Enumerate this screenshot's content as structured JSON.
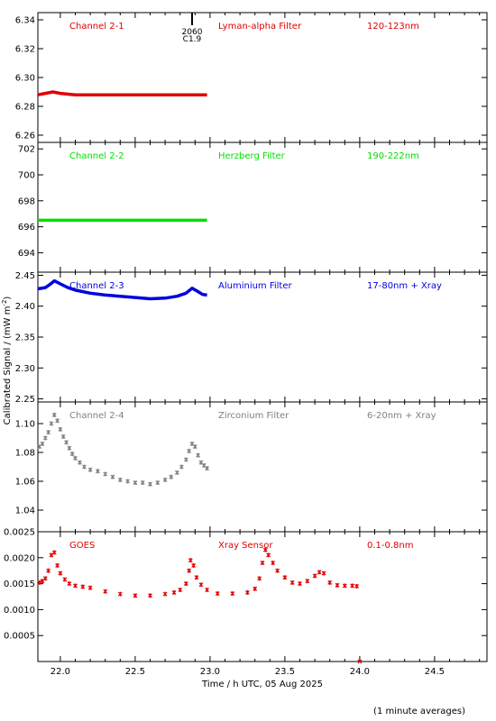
{
  "figure": {
    "ylabel": "Calibrated Signal / (mW m",
    "ylabel_sup": "-2",
    "ylabel_end": ")",
    "xlabel": "Time / h UTC, 05 Aug 2025",
    "footnote": "(1 minute averages)",
    "marker": {
      "top": "2060",
      "bottom": "C1.9",
      "x": 22.88
    }
  },
  "chart_data": [
    {
      "type": "line",
      "label_left": "Channel 2-1",
      "label_mid": "Lyman-alpha Filter",
      "label_right": "120-123nm",
      "color": "#e00000",
      "xlim": [
        21.85,
        24.85
      ],
      "ylim": [
        6.255,
        6.345
      ],
      "yticks": [
        6.26,
        6.28,
        6.3,
        6.32,
        6.34
      ],
      "ytick_labels": [
        "6.26",
        "6.28",
        "6.30",
        "6.32",
        "6.34"
      ],
      "points": [
        [
          21.85,
          6.288
        ],
        [
          21.9,
          6.289
        ],
        [
          21.95,
          6.29
        ],
        [
          22.0,
          6.289
        ],
        [
          22.1,
          6.288
        ],
        [
          22.3,
          6.288
        ],
        [
          22.5,
          6.288
        ],
        [
          22.7,
          6.288
        ],
        [
          22.9,
          6.288
        ],
        [
          22.98,
          6.288
        ]
      ]
    },
    {
      "type": "line",
      "label_left": "Channel 2-2",
      "label_mid": "Herzberg Filter",
      "label_right": "190-222nm",
      "color": "#00e000",
      "xlim": [
        21.85,
        24.85
      ],
      "ylim": [
        692.5,
        702.5
      ],
      "yticks": [
        694,
        696,
        698,
        700,
        702
      ],
      "ytick_labels": [
        "694",
        "696",
        "698",
        "700",
        "702"
      ],
      "points": [
        [
          21.85,
          696.5
        ],
        [
          22.2,
          696.5
        ],
        [
          22.6,
          696.5
        ],
        [
          22.98,
          696.5
        ]
      ]
    },
    {
      "type": "line",
      "label_left": "Channel 2-3",
      "label_mid": "Aluminium Filter",
      "label_right": "17-80nm + Xray",
      "color": "#0000e0",
      "xlim": [
        21.85,
        24.85
      ],
      "ylim": [
        2.245,
        2.455
      ],
      "yticks": [
        2.25,
        2.3,
        2.35,
        2.4,
        2.45
      ],
      "ytick_labels": [
        "2.25",
        "2.30",
        "2.35",
        "2.40",
        "2.45"
      ],
      "points": [
        [
          21.85,
          2.428
        ],
        [
          21.9,
          2.43
        ],
        [
          21.93,
          2.435
        ],
        [
          21.96,
          2.441
        ],
        [
          22.0,
          2.436
        ],
        [
          22.05,
          2.43
        ],
        [
          22.1,
          2.426
        ],
        [
          22.2,
          2.421
        ],
        [
          22.3,
          2.418
        ],
        [
          22.4,
          2.416
        ],
        [
          22.5,
          2.414
        ],
        [
          22.6,
          2.412
        ],
        [
          22.7,
          2.413
        ],
        [
          22.78,
          2.416
        ],
        [
          22.84,
          2.421
        ],
        [
          22.88,
          2.429
        ],
        [
          22.91,
          2.425
        ],
        [
          22.95,
          2.419
        ],
        [
          22.98,
          2.418
        ]
      ]
    },
    {
      "type": "scatter",
      "label_left": "Channel 2-4",
      "label_mid": "Zirconium Filter",
      "label_right": "6-20nm + Xray",
      "color": "#808080",
      "xlim": [
        21.85,
        24.85
      ],
      "ylim": [
        1.025,
        1.115
      ],
      "yticks": [
        1.04,
        1.06,
        1.08,
        1.1
      ],
      "ytick_labels": [
        "1.04",
        "1.06",
        "1.08",
        "1.10"
      ],
      "points": [
        [
          21.86,
          1.084
        ],
        [
          21.88,
          1.086
        ],
        [
          21.9,
          1.09
        ],
        [
          21.92,
          1.094
        ],
        [
          21.94,
          1.1
        ],
        [
          21.96,
          1.106
        ],
        [
          21.98,
          1.102
        ],
        [
          22.0,
          1.096
        ],
        [
          22.02,
          1.091
        ],
        [
          22.04,
          1.087
        ],
        [
          22.06,
          1.083
        ],
        [
          22.08,
          1.079
        ],
        [
          22.1,
          1.076
        ],
        [
          22.13,
          1.073
        ],
        [
          22.16,
          1.07
        ],
        [
          22.2,
          1.068
        ],
        [
          22.25,
          1.067
        ],
        [
          22.3,
          1.065
        ],
        [
          22.35,
          1.063
        ],
        [
          22.4,
          1.061
        ],
        [
          22.45,
          1.06
        ],
        [
          22.5,
          1.059
        ],
        [
          22.55,
          1.059
        ],
        [
          22.6,
          1.058
        ],
        [
          22.65,
          1.059
        ],
        [
          22.7,
          1.061
        ],
        [
          22.74,
          1.063
        ],
        [
          22.78,
          1.066
        ],
        [
          22.81,
          1.07
        ],
        [
          22.84,
          1.075
        ],
        [
          22.86,
          1.081
        ],
        [
          22.88,
          1.086
        ],
        [
          22.9,
          1.084
        ],
        [
          22.92,
          1.078
        ],
        [
          22.94,
          1.073
        ],
        [
          22.96,
          1.071
        ],
        [
          22.98,
          1.069
        ]
      ]
    },
    {
      "type": "scatter",
      "label_left": "GOES",
      "label_mid": "Xray Sensor",
      "label_right": "0.1-0.8nm",
      "color": "#e00000",
      "xlim": [
        21.85,
        24.85
      ],
      "ylim": [
        0.0,
        0.0025
      ],
      "yticks": [
        0.0005,
        0.001,
        0.0015,
        0.002,
        0.0025
      ],
      "ytick_labels": [
        "0.0005",
        "0.0010",
        "0.0015",
        "0.0020",
        "0.0025"
      ],
      "points": [
        [
          21.86,
          0.00152
        ],
        [
          21.88,
          0.00155
        ],
        [
          21.9,
          0.0016
        ],
        [
          21.92,
          0.00175
        ],
        [
          21.94,
          0.00205
        ],
        [
          21.96,
          0.0021
        ],
        [
          21.98,
          0.00185
        ],
        [
          22.0,
          0.0017
        ],
        [
          22.03,
          0.00158
        ],
        [
          22.06,
          0.0015
        ],
        [
          22.1,
          0.00146
        ],
        [
          22.15,
          0.00144
        ],
        [
          22.2,
          0.00142
        ],
        [
          22.3,
          0.00135
        ],
        [
          22.4,
          0.0013
        ],
        [
          22.5,
          0.00127
        ],
        [
          22.6,
          0.00127
        ],
        [
          22.7,
          0.0013
        ],
        [
          22.76,
          0.00133
        ],
        [
          22.8,
          0.00138
        ],
        [
          22.84,
          0.0015
        ],
        [
          22.86,
          0.00175
        ],
        [
          22.87,
          0.00195
        ],
        [
          22.89,
          0.00185
        ],
        [
          22.91,
          0.00162
        ],
        [
          22.94,
          0.00148
        ],
        [
          22.98,
          0.00138
        ],
        [
          23.05,
          0.00131
        ],
        [
          23.15,
          0.00131
        ],
        [
          23.25,
          0.00133
        ],
        [
          23.3,
          0.0014
        ],
        [
          23.33,
          0.0016
        ],
        [
          23.35,
          0.0019
        ],
        [
          23.37,
          0.00215
        ],
        [
          23.39,
          0.00205
        ],
        [
          23.42,
          0.0019
        ],
        [
          23.45,
          0.00175
        ],
        [
          23.5,
          0.00162
        ],
        [
          23.55,
          0.00152
        ],
        [
          23.6,
          0.0015
        ],
        [
          23.65,
          0.00155
        ],
        [
          23.7,
          0.00165
        ],
        [
          23.73,
          0.00172
        ],
        [
          23.76,
          0.0017
        ],
        [
          23.8,
          0.00152
        ],
        [
          23.85,
          0.00147
        ],
        [
          23.9,
          0.00146
        ],
        [
          23.95,
          0.00146
        ],
        [
          23.98,
          0.00145
        ]
      ],
      "stray_point": [
        24.0,
        0.0
      ]
    }
  ],
  "xaxis": {
    "xlim": [
      21.85,
      24.85
    ],
    "ticks": [
      22.0,
      22.5,
      23.0,
      23.5,
      24.0,
      24.5
    ],
    "tick_labels": [
      "22.0",
      "22.5",
      "23.0",
      "23.5",
      "24.0",
      "24.5"
    ]
  }
}
